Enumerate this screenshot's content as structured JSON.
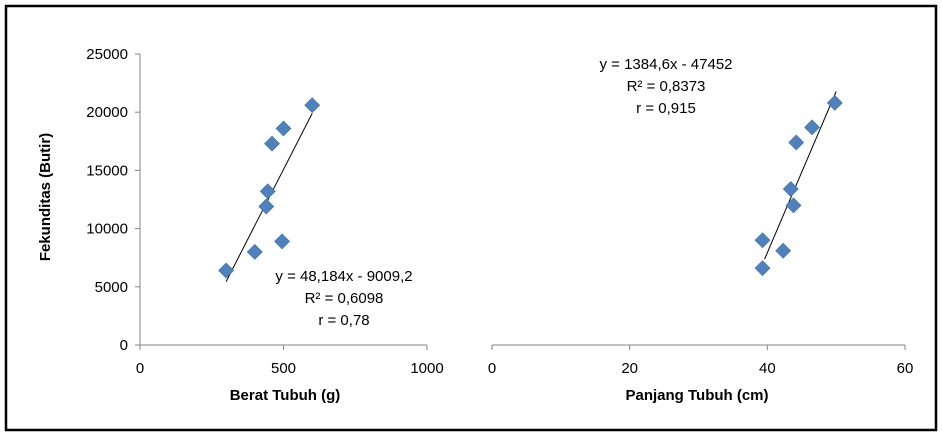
{
  "colors": {
    "marker": "#4f81bd",
    "trendline": "#000000",
    "axis": "#868686",
    "frame": "#000000"
  },
  "shared_y_axis": {
    "label": "Fekunditas (Butir)",
    "range": [
      0,
      25000
    ],
    "ticks": [
      "0",
      "5000",
      "10000",
      "15000",
      "20000",
      "25000"
    ]
  },
  "chart_data": [
    {
      "type": "scatter",
      "marker": "diamond",
      "xlabel": "Berat Tubuh (g)",
      "ylabel": "Fekunditas (Butir)",
      "xlim": [
        0,
        1000
      ],
      "ylim": [
        0,
        25000
      ],
      "x_ticks": [
        "0",
        "500",
        "1000"
      ],
      "y_ticks": [
        "0",
        "5000",
        "10000",
        "15000",
        "20000",
        "25000"
      ],
      "grid": false,
      "series": [
        {
          "points": [
            {
              "x": 300,
              "y": 6400
            },
            {
              "x": 400,
              "y": 8000
            },
            {
              "x": 440,
              "y": 11900
            },
            {
              "x": 445,
              "y": 13200
            },
            {
              "x": 460,
              "y": 17300
            },
            {
              "x": 495,
              "y": 8900
            },
            {
              "x": 500,
              "y": 18600
            },
            {
              "x": 600,
              "y": 20600
            }
          ]
        }
      ],
      "trendline": {
        "slope": 48.184,
        "intercept": -9009.2,
        "x_range": [
          300,
          600
        ]
      },
      "annotation": {
        "lines": [
          "y = 48,184x - 9009,2",
          "R² = 0,6098",
          "r = 0,78"
        ]
      }
    },
    {
      "type": "scatter",
      "marker": "diamond",
      "xlabel": "Panjang Tubuh (cm)",
      "ylabel": "",
      "xlim": [
        0,
        60
      ],
      "ylim": [
        0,
        25000
      ],
      "x_ticks": [
        "0",
        "20",
        "40",
        "60"
      ],
      "y_ticks": [],
      "grid": false,
      "series": [
        {
          "points": [
            {
              "x": 39.3,
              "y": 6600
            },
            {
              "x": 39.3,
              "y": 9000
            },
            {
              "x": 42.3,
              "y": 8100
            },
            {
              "x": 43.4,
              "y": 13400
            },
            {
              "x": 43.8,
              "y": 12000
            },
            {
              "x": 44.2,
              "y": 17400
            },
            {
              "x": 46.5,
              "y": 18700
            },
            {
              "x": 49.8,
              "y": 20800
            }
          ]
        }
      ],
      "trendline": {
        "slope": 1384.6,
        "intercept": -47452,
        "x_range": [
          39.6,
          50
        ]
      },
      "annotation": {
        "lines": [
          "y = 1384,6x - 47452",
          "R² = 0,8373",
          "r = 0,915"
        ]
      }
    }
  ]
}
